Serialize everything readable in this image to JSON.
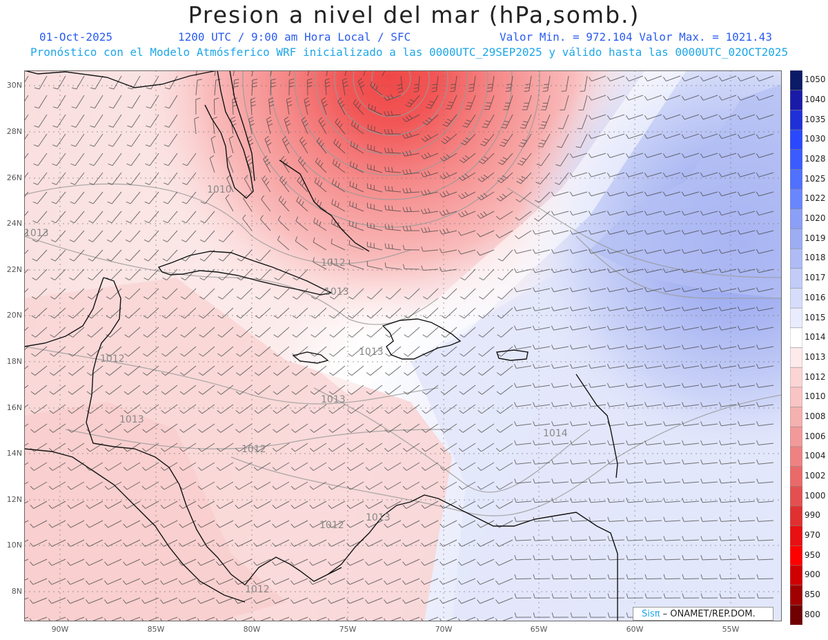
{
  "header": {
    "title": "Presion a nivel del mar (hPa,somb.)",
    "date": "01-Oct-2025",
    "time": "1200 UTC / 9:00 am Hora Local / SFC",
    "minmax": "Valor Min. = 972.104  Valor Max. = 1021.43",
    "info": "Pronóstico con el Modelo Atmósferico WRF inicializado a las 0000UTC_29SEP2025 y válido hasta las  0000UTC_02OCT2025"
  },
  "axes": {
    "lat_labels": [
      "30N",
      "28N",
      "26N",
      "24N",
      "22N",
      "20N",
      "18N",
      "16N",
      "14N",
      "12N",
      "10N",
      "8N"
    ],
    "lon_labels": [
      "90W",
      "85W",
      "80W",
      "75W",
      "70W",
      "65W",
      "60W",
      "55W"
    ]
  },
  "contours": [
    "1010",
    "1013",
    "1012",
    "1013",
    "1012",
    "1013",
    "1013",
    "1012",
    "1014",
    "1013",
    "1012",
    "1013",
    "1012"
  ],
  "colorbar": {
    "levels": [
      "1050",
      "1040",
      "1035",
      "1030",
      "1028",
      "1025",
      "1022",
      "1020",
      "1019",
      "1018",
      "1017",
      "1016",
      "1015",
      "1014",
      "1013",
      "1012",
      "1010",
      "1008",
      "1006",
      "1004",
      "1002",
      "1000",
      "990",
      "970",
      "950",
      "900",
      "850",
      "800"
    ],
    "colors": [
      "#0a1a66",
      "#1a1aa8",
      "#2030d8",
      "#2a48ff",
      "#3a5cff",
      "#5070ff",
      "#6a86ff",
      "#8a9ff5",
      "#9cadf3",
      "#aebbf5",
      "#c2ccf7",
      "#d6ddfa",
      "#e8ecfd",
      "#ffffff",
      "#fdeaea",
      "#fbd4d4",
      "#f8c4c4",
      "#f5b0b0",
      "#f29a9a",
      "#ee8282",
      "#ea6a6a",
      "#e45050",
      "#e03030",
      "#e81010",
      "#ff0000",
      "#d00000",
      "#a00000",
      "#700000"
    ]
  },
  "credit": {
    "brand": "Sis",
    "brand_symbol": "π",
    "text": " – ONAMET/REP.DOM."
  }
}
